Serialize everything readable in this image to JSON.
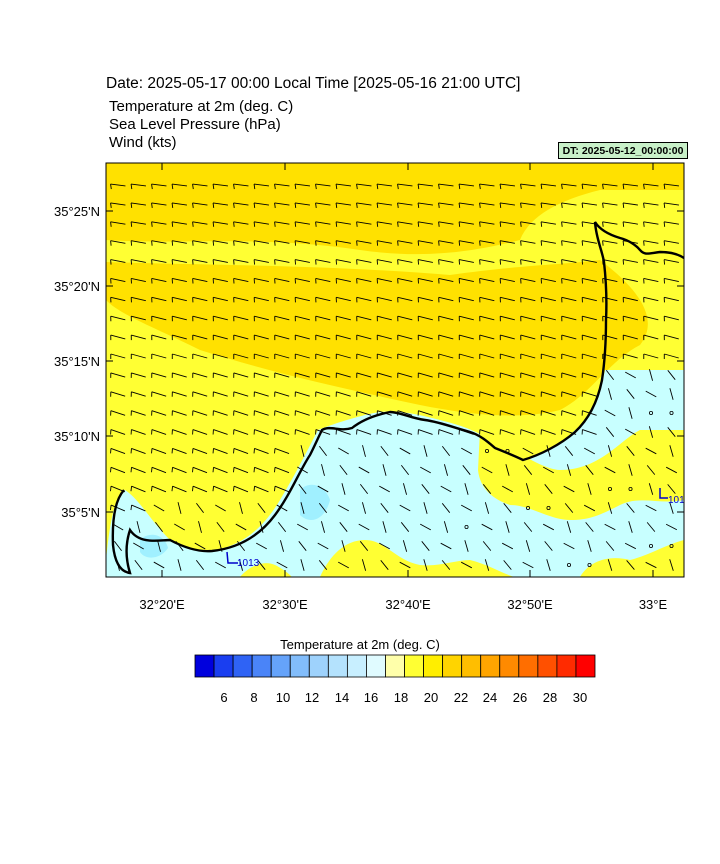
{
  "header": {
    "date_title": "Date: 2025-05-17  00:00 Local Time [2025-05-16  21:00 UTC]",
    "variables": [
      "Temperature at 2m   (deg. C)",
      "Sea Level Pressure   (hPa)",
      "Wind   (kts)"
    ],
    "dt_badge": "DT: 2025-05-12_00:00:00"
  },
  "map": {
    "lat_labels": [
      "35°25'N",
      "35°20'N",
      "35°15'N",
      "35°10'N",
      "35°5'N"
    ],
    "lon_labels": [
      "32°20'E",
      "32°30'E",
      "32°40'E",
      "32°50'E",
      "33°E"
    ],
    "pressure_labels": [
      "1013",
      "101"
    ],
    "colors": {
      "sea_warm": "#ffff33",
      "sea_warmer": "#ffe100",
      "land_cool": "#c8ffff",
      "land_cooler": "#a0f0ff",
      "coast": "#000000",
      "isobar": "#0000cc"
    },
    "wind": "north-westerly wind barbs over the sea, light and variable winds with calm circles over land"
  },
  "colorbar": {
    "title": "Temperature at 2m  (deg. C)",
    "labels": [
      "6",
      "8",
      "10",
      "12",
      "14",
      "16",
      "18",
      "20",
      "22",
      "24",
      "26",
      "28",
      "30"
    ],
    "colors": [
      "#0000dd",
      "#1a3ef0",
      "#2f63f5",
      "#4a84f8",
      "#65a3fa",
      "#82bdfb",
      "#9ed2fc",
      "#b4e2fd",
      "#c8efff",
      "#e0fbff",
      "#ffffaa",
      "#ffff33",
      "#ffee00",
      "#ffd400",
      "#ffbe00",
      "#ffa500",
      "#ff8a00",
      "#ff6e00",
      "#ff5000",
      "#ff2b00",
      "#ff0000"
    ]
  }
}
